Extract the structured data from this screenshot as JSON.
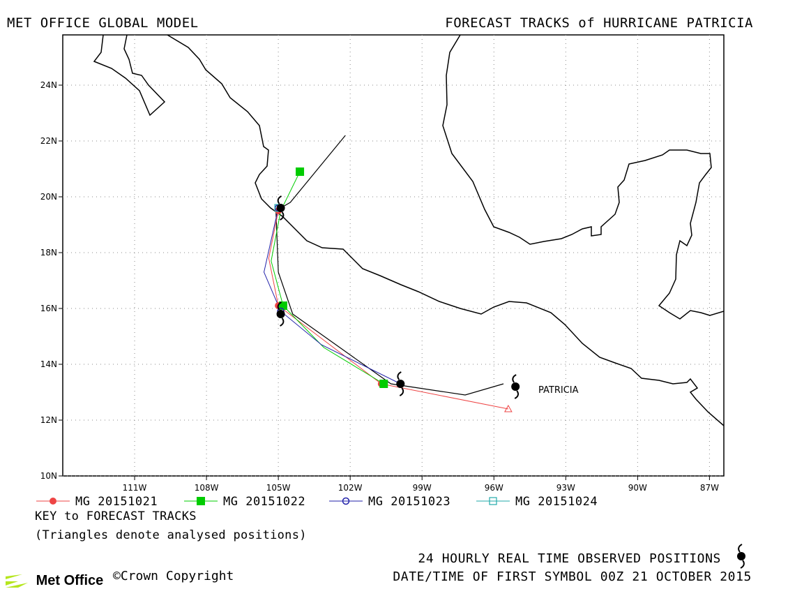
{
  "header": {
    "left_title": "MET OFFICE GLOBAL MODEL",
    "right_title": "FORECAST TRACKS of HURRICANE PATRICIA"
  },
  "chart_data": {
    "type": "line",
    "xlabel": "",
    "ylabel": "",
    "xlim": [
      -114,
      -86.4
    ],
    "ylim": [
      10,
      25.8
    ],
    "x_ticks": [
      -111,
      -108,
      -105,
      -102,
      -99,
      -96,
      -93,
      -90,
      -87
    ],
    "x_tick_labels": [
      "111W",
      "108W",
      "105W",
      "102W",
      "99W",
      "96W",
      "93W",
      "90W",
      "87W"
    ],
    "y_ticks": [
      10,
      12,
      14,
      16,
      18,
      20,
      22,
      24
    ],
    "y_tick_labels": [
      "10N",
      "12N",
      "14N",
      "16N",
      "18N",
      "20N",
      "22N",
      "24N"
    ],
    "grid": true,
    "storm_label": "PATRICIA",
    "observed_track": {
      "x": [
        -95.6,
        -97.2,
        -100.3,
        -104.4,
        -105.0,
        -105.1,
        -104.5,
        -102.2
      ],
      "y": [
        13.3,
        12.9,
        13.3,
        15.8,
        17.3,
        19.5,
        19.8,
        22.2
      ],
      "color": "#000000"
    },
    "observed_positions": {
      "x": [
        -95.1,
        -99.9,
        -104.9,
        -104.9
      ],
      "y": [
        13.2,
        13.3,
        15.8,
        19.6
      ]
    },
    "series": [
      {
        "name": "MG 20151021",
        "color": "#ee4444",
        "marker": "circle-filled",
        "x": [
          -95.4,
          -100.7,
          -105.0,
          -105.4,
          -105.0
        ],
        "y": [
          12.4,
          13.3,
          16.1,
          17.8,
          19.5
        ],
        "start_marker": "triangle"
      },
      {
        "name": "MG 20151022",
        "color": "#00cc00",
        "marker": "square-filled",
        "x": [
          -100.6,
          -103.1,
          -104.8,
          -105.3,
          -104.9,
          -104.1
        ],
        "y": [
          13.3,
          14.6,
          16.1,
          17.7,
          19.5,
          20.9
        ]
      },
      {
        "name": "MG 20151023",
        "color": "#2222aa",
        "marker": "circle-open",
        "x": [
          -99.9,
          -103.2,
          -104.9,
          -105.6,
          -105.0
        ],
        "y": [
          13.3,
          14.7,
          15.9,
          17.3,
          19.6
        ]
      },
      {
        "name": "MG 20151024",
        "color": "#22aaaa",
        "marker": "square-open",
        "x": [
          -105.0
        ],
        "y": [
          19.6
        ]
      }
    ]
  },
  "key": {
    "title": "KEY to FORECAST TRACKS",
    "note": "(Triangles denote analysed positions)"
  },
  "footer": {
    "line1": "24 HOURLY REAL TIME OBSERVED POSITIONS",
    "line2": "DATE/TIME OF FIRST SYMBOL 00Z 21 OCTOBER 2015",
    "logo": "Met Office",
    "copyright": "©Crown Copyright"
  }
}
